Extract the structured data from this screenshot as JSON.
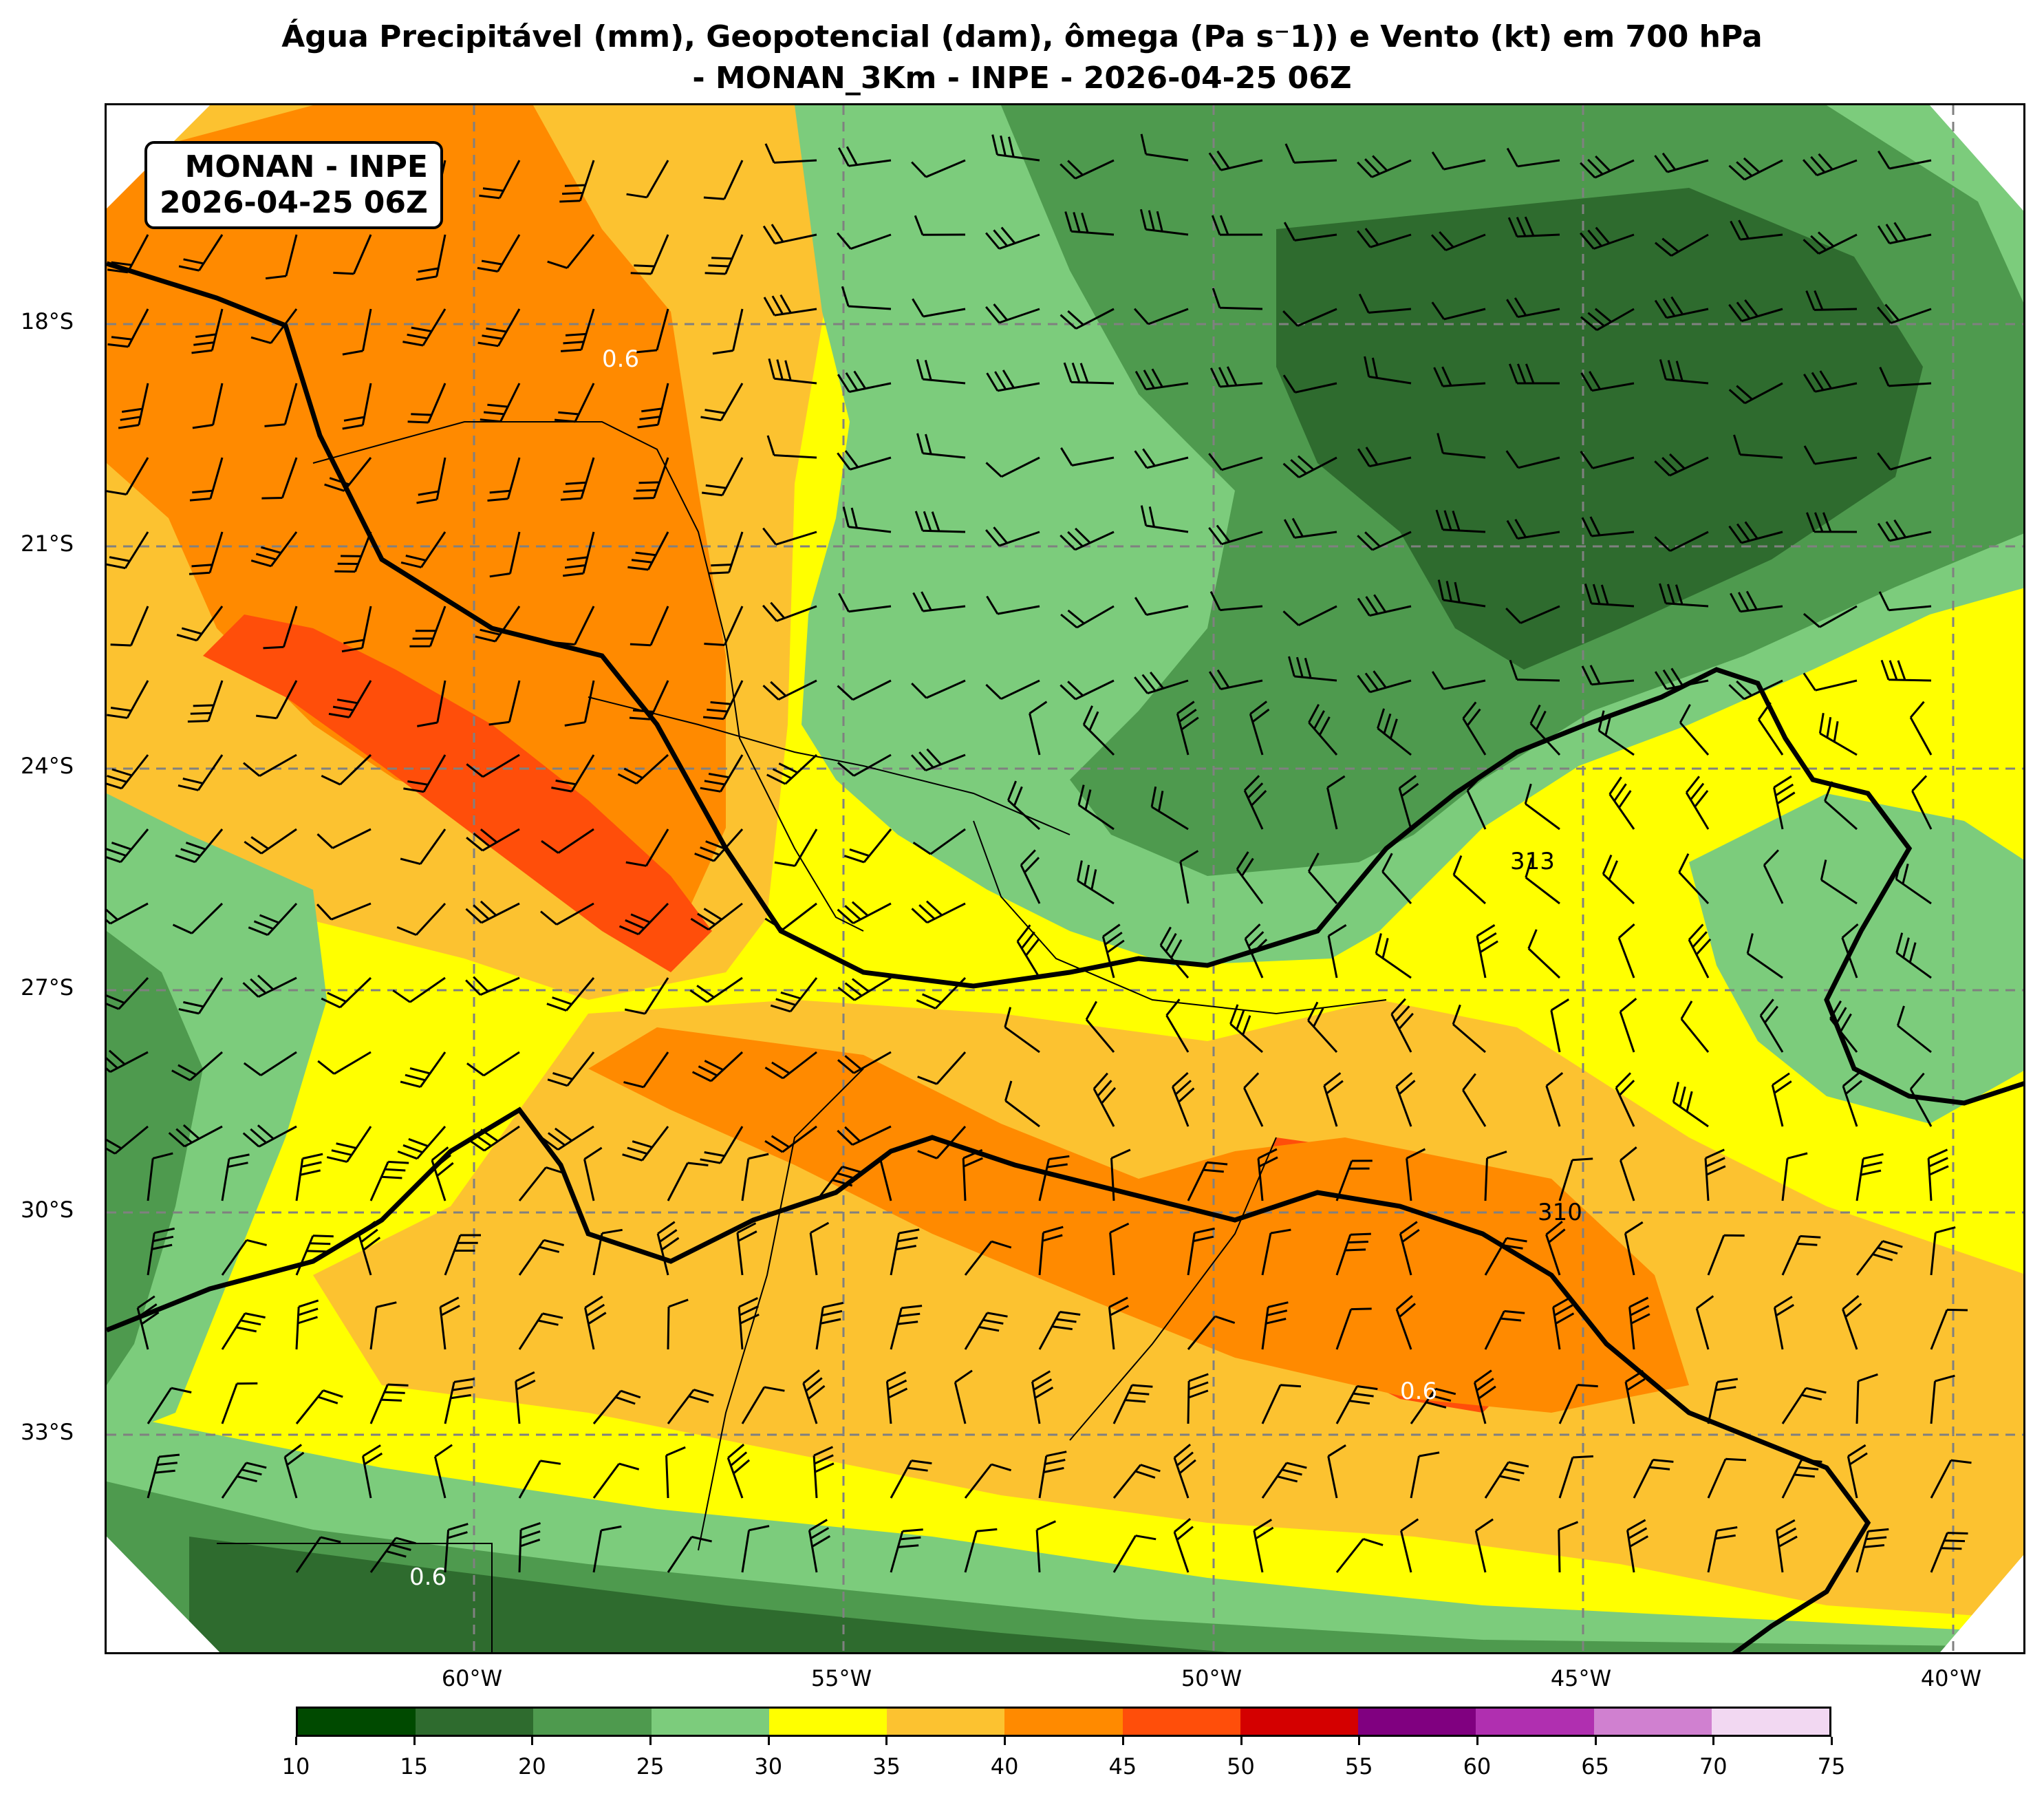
{
  "title": {
    "line1": "Água Precipitável (mm), Geopotencial (dam), ômega (Pa s⁻1)) e Vento (kt) em 700 hPa",
    "line2": "- MONAN_3Km - INPE - 2026-04-25 06Z"
  },
  "stamp": {
    "line1": "MONAN - INPE",
    "line2": "2026-04-25 06Z"
  },
  "map": {
    "lat_labels": [
      "18°S",
      "21°S",
      "24°S",
      "27°S",
      "30°S",
      "33°S"
    ],
    "lon_labels": [
      "60°W",
      "55°W",
      "50°W",
      "45°W",
      "40°W"
    ],
    "contour_labels": [
      "313",
      "310",
      "0.6",
      "0.6",
      "0.6"
    ]
  },
  "colorbar": {
    "ticks": [
      "10",
      "15",
      "20",
      "25",
      "30",
      "35",
      "40",
      "45",
      "50",
      "55",
      "60",
      "65",
      "70",
      "75"
    ],
    "colors": [
      "#004a00",
      "#2e6b2e",
      "#4e9a4e",
      "#7ccc7c",
      "#ffff00",
      "#fcc230",
      "#ff8a00",
      "#ff4e0a",
      "#d40000",
      "#800080",
      "#b02fb0",
      "#d080d0",
      "#f2d8f2"
    ]
  }
}
